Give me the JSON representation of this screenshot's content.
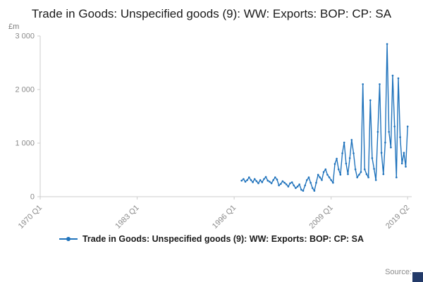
{
  "header": {
    "title": "Trade in Goods: Unspecified goods (9): WW: Exports: BOP: CP: SA"
  },
  "legend": {
    "label": "Trade in Goods: Unspecified goods (9): WW: Exports: BOP: CP: SA"
  },
  "footer": {
    "source_label": "Source:",
    "logo_color": "#233a69"
  },
  "chart_data": {
    "type": "line",
    "title": "Trade in Goods: Unspecified goods (9): WW: Exports: BOP: CP: SA",
    "xlabel": "",
    "ylabel": "£m",
    "ylim": [
      0,
      3000
    ],
    "xlim": [
      1970,
      2019.8
    ],
    "grid": false,
    "legend_position": "bottom",
    "line_color": "#2073bc",
    "axis_color": "#cccccc",
    "tick_text_color": "#8a8a8a",
    "yticks": [
      {
        "value": 0,
        "label": "0"
      },
      {
        "value": 1000,
        "label": "1 000"
      },
      {
        "value": 2000,
        "label": "2 000"
      },
      {
        "value": 3000,
        "label": "3 000"
      }
    ],
    "xticks": [
      {
        "value": 1970.0,
        "label": "1970 Q1"
      },
      {
        "value": 1983.0,
        "label": "1983 Q1"
      },
      {
        "value": 1996.0,
        "label": "1996 Q1"
      },
      {
        "value": 2009.0,
        "label": "2009 Q1"
      },
      {
        "value": 2019.25,
        "label": "2019 Q2"
      }
    ],
    "series": [
      {
        "name": "Trade in Goods: Unspecified goods (9): WW: Exports: BOP: CP: SA",
        "x_start": 1997.0,
        "x_step": 0.25,
        "values": [
          300,
          330,
          280,
          310,
          360,
          310,
          270,
          330,
          290,
          250,
          310,
          270,
          330,
          370,
          300,
          280,
          250,
          310,
          360,
          320,
          210,
          240,
          290,
          260,
          230,
          190,
          250,
          270,
          210,
          160,
          190,
          230,
          130,
          110,
          210,
          310,
          360,
          260,
          160,
          110,
          260,
          410,
          360,
          310,
          460,
          510,
          410,
          360,
          310,
          260,
          610,
          710,
          510,
          410,
          810,
          1010,
          620,
          420,
          720,
          1060,
          810,
          510,
          360,
          410,
          460,
          2100,
          510,
          420,
          360,
          1800,
          720,
          520,
          310,
          1210,
          2100,
          820,
          420,
          1010,
          2850,
          1210,
          920,
          2260,
          1310,
          360,
          2210,
          1110,
          620,
          820,
          560,
          1310
        ]
      }
    ]
  }
}
